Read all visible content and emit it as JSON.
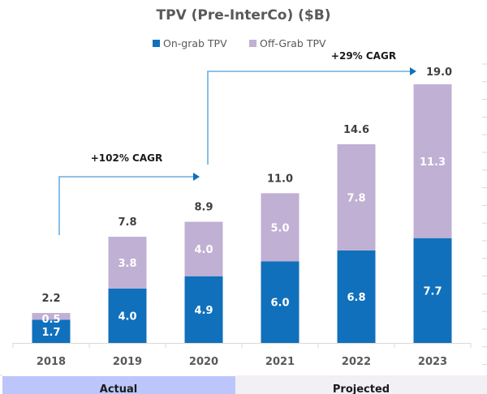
{
  "chart_data": {
    "type": "bar",
    "stacked": true,
    "title": "TPV (Pre-InterCo) ($B)",
    "xlabel": "",
    "ylabel": "",
    "categories": [
      "2018",
      "2019",
      "2020",
      "2021",
      "2022",
      "2023"
    ],
    "series": [
      {
        "name": "On-grab TPV",
        "color": "#1070bb",
        "values": [
          1.7,
          4.0,
          4.9,
          6.0,
          6.8,
          7.7
        ]
      },
      {
        "name": "Off-Grab TPV",
        "color": "#c0b0d4",
        "values": [
          0.5,
          3.8,
          4.0,
          5.0,
          7.8,
          11.3
        ]
      }
    ],
    "totals": [
      2.2,
      7.8,
      8.9,
      11.0,
      14.6,
      19.0
    ],
    "total_labels": [
      "2.2",
      "7.8",
      "8.9",
      "11.0",
      "14.6",
      "19.0"
    ],
    "segment_labels": [
      [
        "1.7",
        "4.0",
        "4.9",
        "6.0",
        "6.8",
        "7.7"
      ],
      [
        "0.5",
        "3.8",
        "4.0",
        "5.0",
        "7.8",
        "11.3"
      ]
    ],
    "ylim": [
      0,
      19.0
    ],
    "grid": false,
    "legend": {
      "placement": "top-center",
      "entries": [
        "On-grab TPV",
        "Off-Grab TPV"
      ]
    },
    "annotations": [
      {
        "text": "+102% CAGR",
        "from_category": "2018",
        "to_category": "2020"
      },
      {
        "text": "+29% CAGR",
        "from_category": "2020",
        "to_category": "2023"
      }
    ],
    "period_bands": [
      {
        "label": "Actual",
        "categories": [
          "2018",
          "2019",
          "2020"
        ],
        "color": "#bcc6fb"
      },
      {
        "label": "Projected",
        "categories": [
          "2021",
          "2022",
          "2023"
        ],
        "color": "#f2f0f4"
      }
    ]
  },
  "colors": {
    "arrow": "#6aaee0",
    "arrowhead": "#1070bb",
    "axis": "#d9d9d9"
  }
}
